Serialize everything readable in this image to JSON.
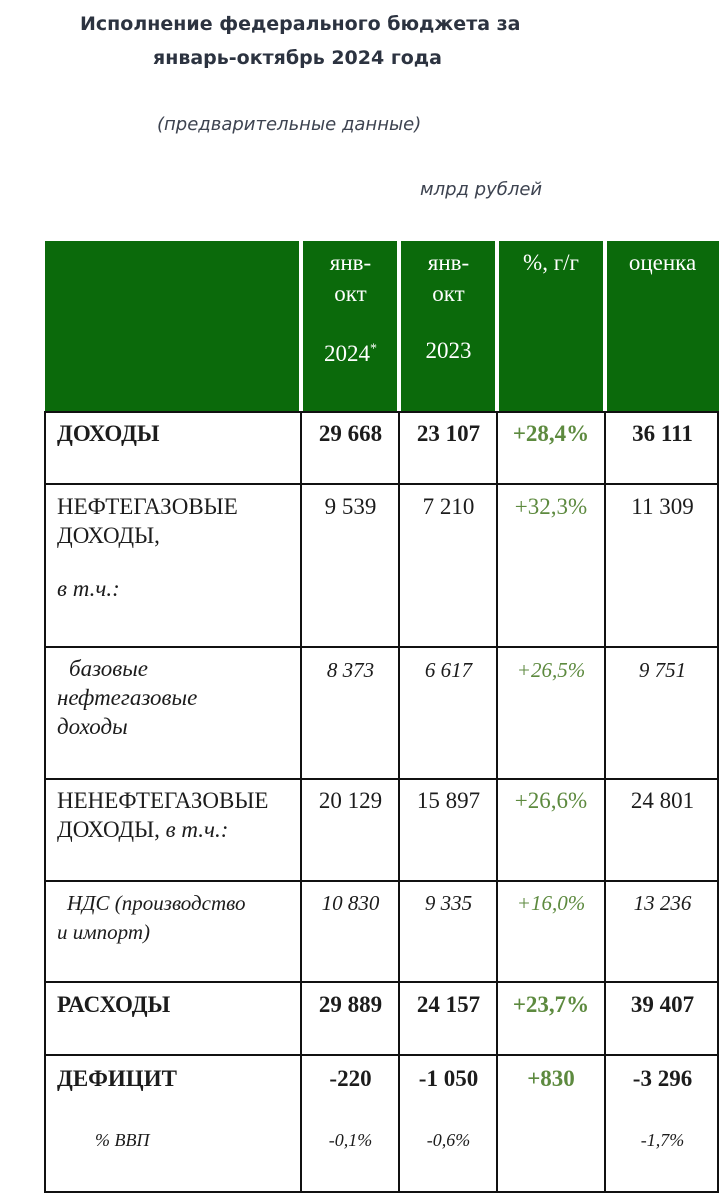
{
  "title": {
    "line1": "Исполнение федерального бюджета за",
    "line2": "январь-октябрь 2024 года",
    "note": "(предварительные данные)",
    "units": "млрд рублей"
  },
  "table": {
    "header": {
      "col1_line1": "янв-",
      "col1_line2": "окт",
      "col1_line3": "2024",
      "col1_mark": "*",
      "col2_line1": "янв-",
      "col2_line2": "окт",
      "col2_line3": "2023",
      "col3": "%, г/г",
      "col4": "оценка"
    },
    "rows": [
      {
        "label": "ДОХОДЫ",
        "v2024": "29 668",
        "v2023": "23 107",
        "yoy": "+28,4%",
        "est": "36 111"
      },
      {
        "label_line1": "НЕФТЕГАЗОВЫЕ",
        "label_line2": "ДОХОДЫ,",
        "label_line3": "в т.ч.:",
        "v2024": "9 539",
        "v2023": "7 210",
        "yoy": "+32,3%",
        "est": "11 309"
      },
      {
        "label_line1": "базовые",
        "label_line2": "нефтегазовые",
        "label_line3": "доходы",
        "v2024": "8 373",
        "v2023": "6 617",
        "yoy": "+26,5%",
        "est": "9 751"
      },
      {
        "label_line1": "НЕНЕФТЕГАЗОВЫЕ",
        "label_line2": "ДОХОДЫ,",
        "label_line2b": "в т.ч.:",
        "v2024": "20 129",
        "v2023": "15 897",
        "yoy": "+26,6%",
        "est": "24 801"
      },
      {
        "label_line1": "НДС (производство",
        "label_line2": "и импорт)",
        "v2024": "10 830",
        "v2023": "9 335",
        "yoy": "+16,0%",
        "est": "13 236"
      },
      {
        "label": "РАСХОДЫ",
        "v2024": "29 889",
        "v2023": "24 157",
        "yoy": "+23,7%",
        "est": "39 407"
      },
      {
        "label": "ДЕФИЦИТ",
        "v2024": "-220",
        "v2023": "-1 050",
        "yoy": "+830",
        "est": "-3 296"
      },
      {
        "label": "% ВВП",
        "v2024": "-0,1%",
        "v2023": "-0,6%",
        "yoy": "",
        "est": "-1,7%"
      }
    ]
  }
}
